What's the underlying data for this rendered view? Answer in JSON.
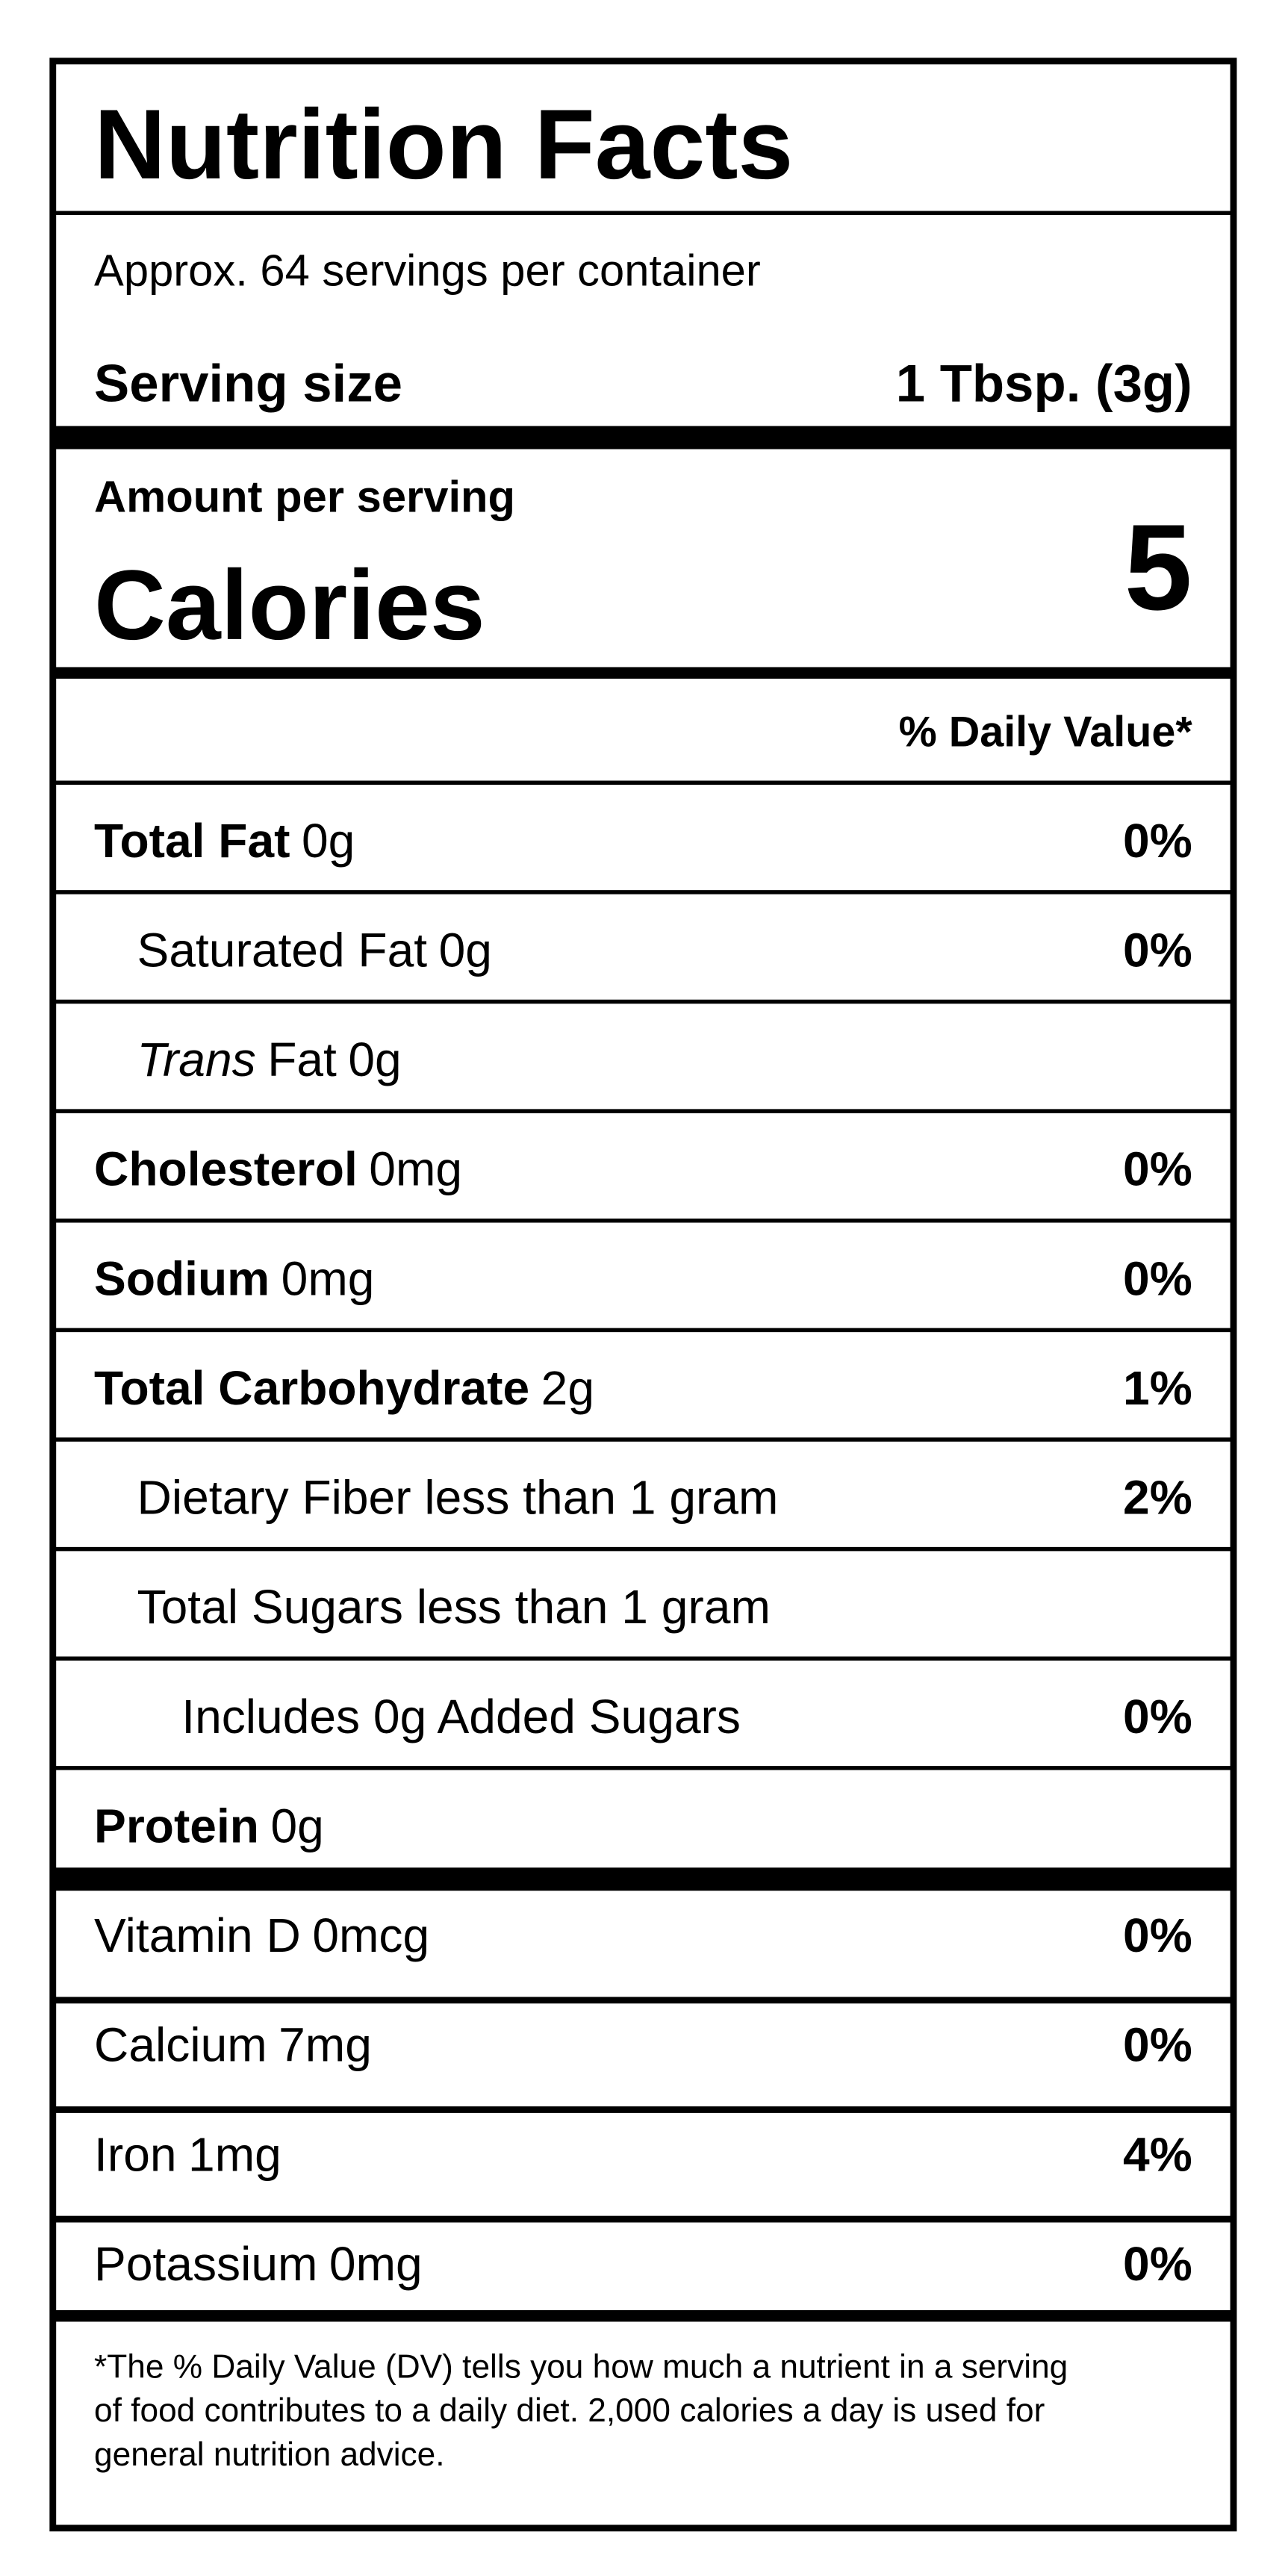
{
  "title": "Nutrition Facts",
  "servings": "Approx. 64 servings per container",
  "serving_size": {
    "label": "Serving size",
    "value": "1 Tbsp. (3g)"
  },
  "calories": {
    "header": "Amount per serving",
    "label": "Calories",
    "value": 5
  },
  "dv_header": "% Daily Value*",
  "nutrients": [
    {
      "name": "Total Fat",
      "amount": "0g",
      "dv": "0%"
    },
    {
      "name": "Saturated Fat",
      "amount": "0g",
      "dv": "0%"
    },
    {
      "qualifier": "Trans",
      "name": "Fat",
      "amount": "0g"
    },
    {
      "name": "Cholesterol",
      "amount": "0mg",
      "dv": "0%"
    },
    {
      "name": "Sodium",
      "amount": "0mg",
      "dv": "0%"
    },
    {
      "name": "Total Carbohydrate",
      "amount": "2g",
      "dv": "1%"
    },
    {
      "name": "Dietary Fiber less than 1 gram",
      "dv": "2%"
    },
    {
      "name": "Total Sugars less than 1 gram"
    },
    {
      "name": "Includes 0g Added Sugars",
      "dv": "0%"
    },
    {
      "name": "Protein",
      "amount": "0g"
    }
  ],
  "vitamins": [
    {
      "name": "Vitamin D",
      "amount": "0mcg",
      "dv": "0%"
    },
    {
      "name": "Calcium",
      "amount": "7mg",
      "dv": "0%"
    },
    {
      "name": "Iron",
      "amount": "1mg",
      "dv": "4%"
    },
    {
      "name": "Potassium",
      "amount": "0mg",
      "dv": "0%"
    }
  ],
  "footnote": [
    "*The % Daily Value (DV) tells you how much a nutrient in a serving",
    "of food contributes to a daily diet. 2,000 calories a day is used for",
    "general nutrition advice."
  ]
}
